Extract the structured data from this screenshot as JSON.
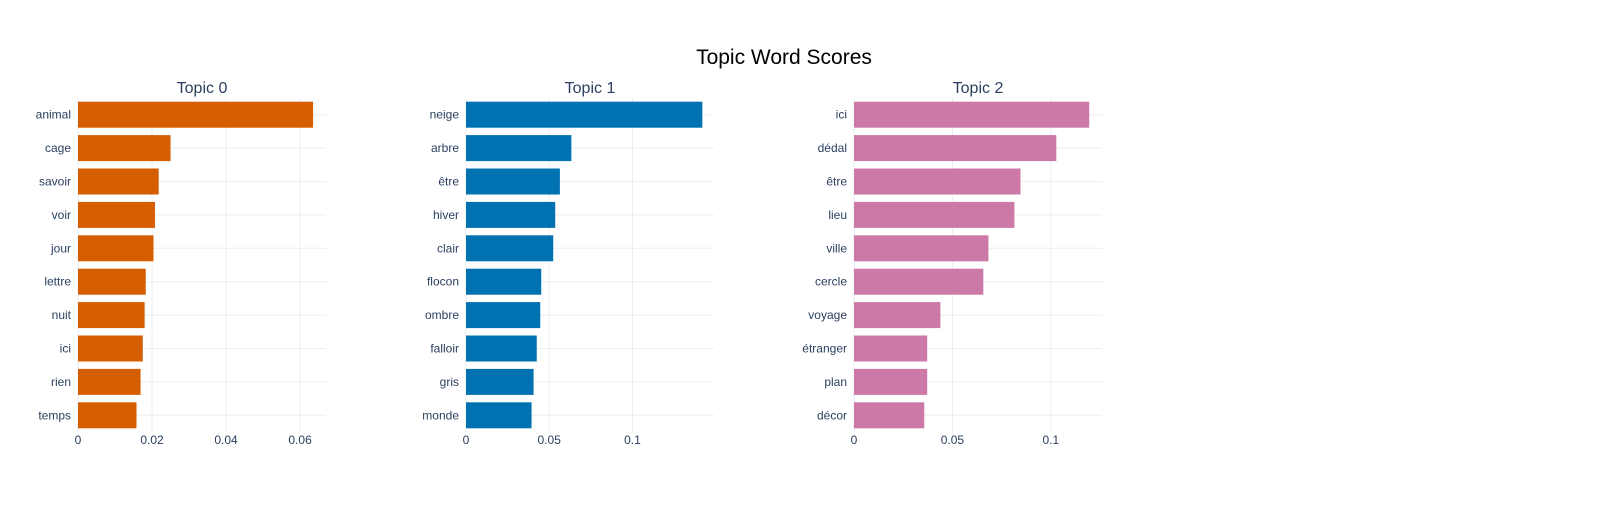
{
  "title": "Topic Word Scores",
  "chart_data": [
    {
      "type": "bar",
      "orientation": "horizontal",
      "title": "Topic 0",
      "color": "#D55E00",
      "categories": [
        "animal",
        "cage",
        "savoir",
        "voir",
        "jour",
        "lettre",
        "nuit",
        "ici",
        "rien",
        "temps"
      ],
      "values": [
        0.0635,
        0.025,
        0.0218,
        0.0208,
        0.0204,
        0.0183,
        0.018,
        0.0175,
        0.0169,
        0.0158
      ],
      "xlim": [
        0,
        0.067
      ],
      "xticks": [
        0,
        0.02,
        0.04,
        0.06
      ],
      "xtick_labels": [
        "0",
        "0.02",
        "0.04",
        "0.06"
      ],
      "grid": true
    },
    {
      "type": "bar",
      "orientation": "horizontal",
      "title": "Topic 1",
      "color": "#0072B2",
      "categories": [
        "neige",
        "arbre",
        "être",
        "hiver",
        "clair",
        "flocon",
        "ombre",
        "falloir",
        "gris",
        "monde"
      ],
      "values": [
        0.142,
        0.0633,
        0.0564,
        0.0536,
        0.0524,
        0.0452,
        0.0446,
        0.0425,
        0.0406,
        0.0394
      ],
      "xlim": [
        0,
        0.149
      ],
      "xticks": [
        0,
        0.05,
        0.1
      ],
      "xtick_labels": [
        "0",
        "0.05",
        "0.1"
      ],
      "grid": true
    },
    {
      "type": "bar",
      "orientation": "horizontal",
      "title": "Topic 2",
      "color": "#CC79A7",
      "categories": [
        "ici",
        "dédal",
        "être",
        "lieu",
        "ville",
        "cercle",
        "voyage",
        "étranger",
        "plan",
        "décor"
      ],
      "values": [
        0.1195,
        0.1028,
        0.0846,
        0.0815,
        0.0683,
        0.0657,
        0.0439,
        0.0372,
        0.0372,
        0.0357
      ],
      "xlim": [
        0,
        0.126
      ],
      "xticks": [
        0,
        0.05,
        0.1
      ],
      "xtick_labels": [
        "0",
        "0.05",
        "0.1"
      ],
      "grid": true
    }
  ]
}
